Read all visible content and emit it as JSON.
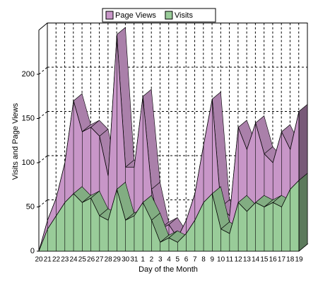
{
  "chart_data": {
    "type": "area3d",
    "xlabel": "Day of the Month",
    "ylabel": "Visits and Page Views",
    "categories": [
      "20",
      "21",
      "22",
      "23",
      "24",
      "25",
      "26",
      "27",
      "28",
      "29",
      "30",
      "31",
      "1",
      "2",
      "3",
      "4",
      "5",
      "6",
      "7",
      "8",
      "9",
      "10",
      "11",
      "12",
      "13",
      "14",
      "15",
      "16",
      "17",
      "18",
      "19"
    ],
    "series": [
      {
        "name": "Page Views",
        "color": "#c896c8",
        "values": [
          0,
          35,
          60,
          100,
          170,
          135,
          140,
          130,
          85,
          245,
          95,
          95,
          175,
          70,
          25,
          30,
          15,
          35,
          65,
          120,
          172,
          50,
          40,
          140,
          115,
          145,
          110,
          100,
          135,
          115,
          158
        ]
      },
      {
        "name": "Visits",
        "color": "#99cc99",
        "values": [
          0,
          25,
          40,
          55,
          65,
          55,
          60,
          40,
          35,
          70,
          35,
          40,
          55,
          35,
          10,
          15,
          10,
          20,
          35,
          55,
          65,
          25,
          20,
          55,
          45,
          55,
          50,
          55,
          50,
          70,
          80
        ]
      }
    ],
    "ylim": [
      0,
      250
    ],
    "yticks": [
      0,
      50,
      100,
      150,
      200
    ],
    "grid": true,
    "legend": "top"
  }
}
